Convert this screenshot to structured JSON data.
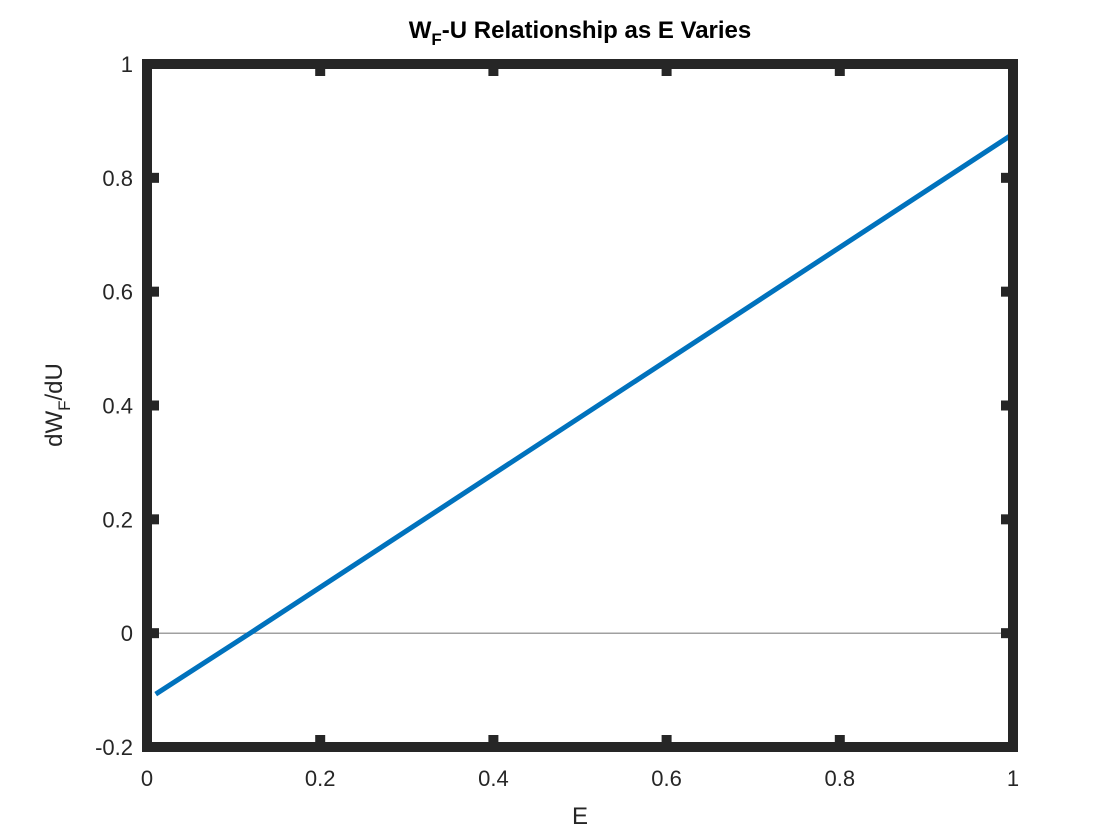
{
  "chart_data": {
    "type": "line",
    "title_main": "W",
    "title_sub": "F",
    "title_rest": "-U Relationship as E Varies",
    "xlabel": "E",
    "ylabel_main": "dW",
    "ylabel_sub": "F",
    "ylabel_rest": "/dU",
    "xlim": [
      0,
      1
    ],
    "ylim": [
      -0.2,
      1
    ],
    "xticks": [
      0,
      0.2,
      0.4,
      0.6,
      0.8,
      1
    ],
    "xtick_labels": [
      "0",
      "0.2",
      "0.4",
      "0.6",
      "0.8",
      "1"
    ],
    "yticks": [
      -0.2,
      0,
      0.2,
      0.4,
      0.6,
      0.8,
      1
    ],
    "ytick_labels": [
      "-0.2",
      "0",
      "0.2",
      "0.4",
      "0.6",
      "0.8",
      "1"
    ],
    "grid": false,
    "reference_line": {
      "y": 0,
      "color": "#808080"
    },
    "series": [
      {
        "color": "#0072bd",
        "x": [
          0.01,
          0.119,
          1
        ],
        "y": [
          -0.107,
          0,
          0.877
        ]
      }
    ]
  }
}
